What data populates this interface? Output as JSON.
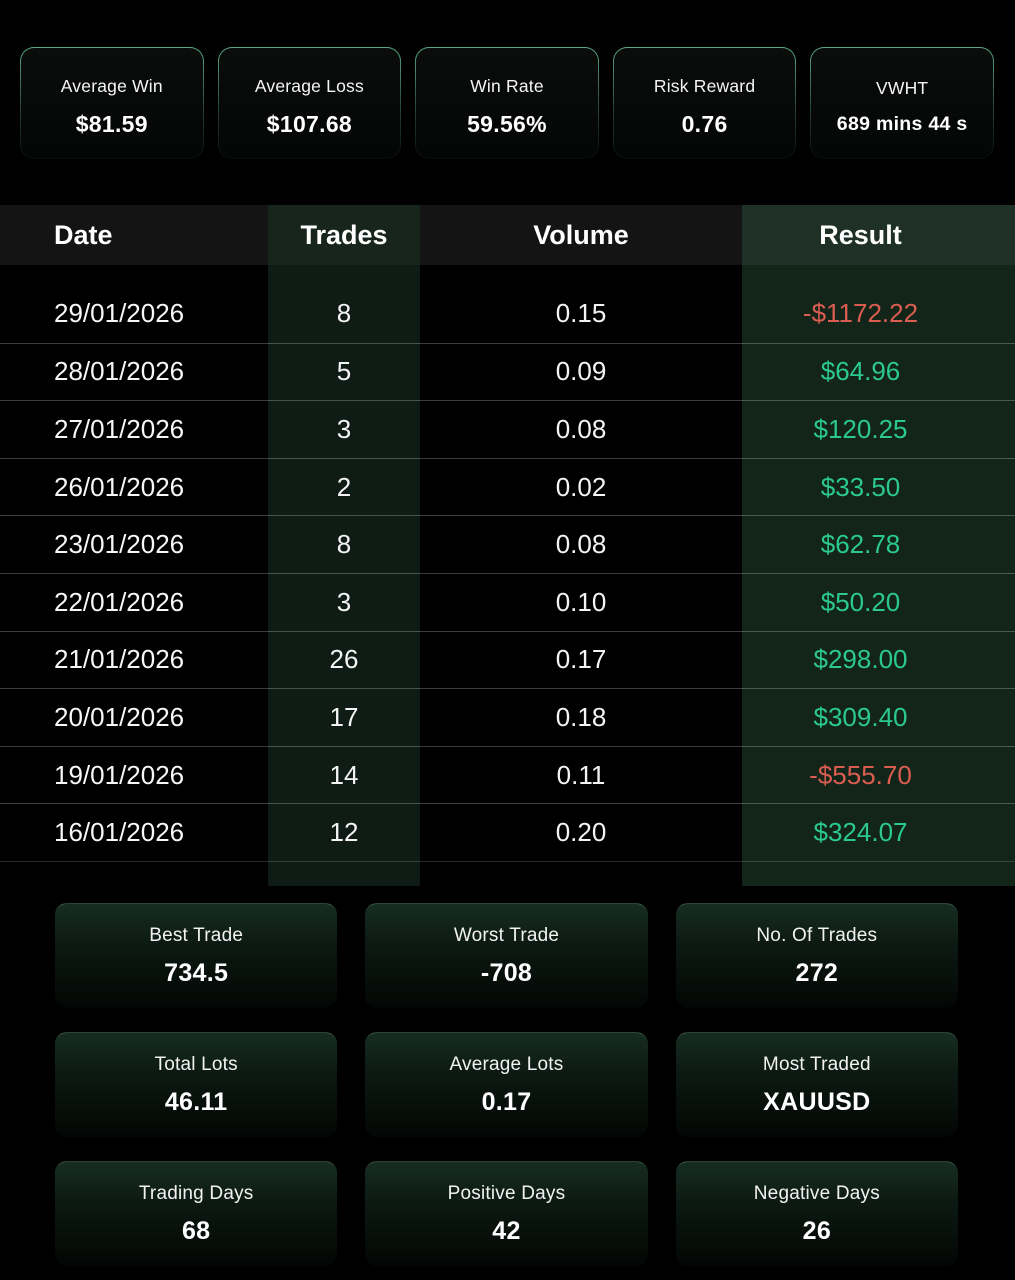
{
  "page": {
    "background": "#000000"
  },
  "colors": {
    "positive": "#2bc98c",
    "negative": "#d95d51",
    "card_border_green": "#5fb28b",
    "trades_column_bg": "#0e1c15",
    "result_column_bg": "#132518"
  },
  "top_stats": {
    "cards": [
      {
        "label": "Average Win",
        "value": "$81.59"
      },
      {
        "label": "Average Loss",
        "value": "$107.68"
      },
      {
        "label": "Win Rate",
        "value": "59.56%"
      },
      {
        "label": "Risk Reward",
        "value": "0.76"
      },
      {
        "label": "VWHT",
        "value": "689 mins 44 s"
      }
    ]
  },
  "table": {
    "columns": [
      "Date",
      "Trades",
      "Volume",
      "Result"
    ],
    "rows": [
      {
        "date": "29/01/2026",
        "trades": "8",
        "volume": "0.15",
        "result": "-$1172.22",
        "trend": "down"
      },
      {
        "date": "28/01/2026",
        "trades": "5",
        "volume": "0.09",
        "result": "$64.96",
        "trend": "up"
      },
      {
        "date": "27/01/2026",
        "trades": "3",
        "volume": "0.08",
        "result": "$120.25",
        "trend": "up"
      },
      {
        "date": "26/01/2026",
        "trades": "2",
        "volume": "0.02",
        "result": "$33.50",
        "trend": "up"
      },
      {
        "date": "23/01/2026",
        "trades": "8",
        "volume": "0.08",
        "result": "$62.78",
        "trend": "up"
      },
      {
        "date": "22/01/2026",
        "trades": "3",
        "volume": "0.10",
        "result": "$50.20",
        "trend": "up"
      },
      {
        "date": "21/01/2026",
        "trades": "26",
        "volume": "0.17",
        "result": "$298.00",
        "trend": "up"
      },
      {
        "date": "20/01/2026",
        "trades": "17",
        "volume": "0.18",
        "result": "$309.40",
        "trend": "up"
      },
      {
        "date": "19/01/2026",
        "trades": "14",
        "volume": "0.11",
        "result": "-$555.70",
        "trend": "down"
      },
      {
        "date": "16/01/2026",
        "trades": "12",
        "volume": "0.20",
        "result": "$324.07",
        "trend": "up"
      }
    ]
  },
  "summary_cards": [
    {
      "label": "Best Trade",
      "value": "734.5"
    },
    {
      "label": "Worst Trade",
      "value": "-708"
    },
    {
      "label": "No. Of Trades",
      "value": "272"
    },
    {
      "label": "Total Lots",
      "value": "46.11"
    },
    {
      "label": "Average Lots",
      "value": "0.17"
    },
    {
      "label": "Most Traded",
      "value": "XAUUSD"
    },
    {
      "label": "Trading Days",
      "value": "68"
    },
    {
      "label": "Positive Days",
      "value": "42"
    },
    {
      "label": "Negative Days",
      "value": "26"
    }
  ]
}
